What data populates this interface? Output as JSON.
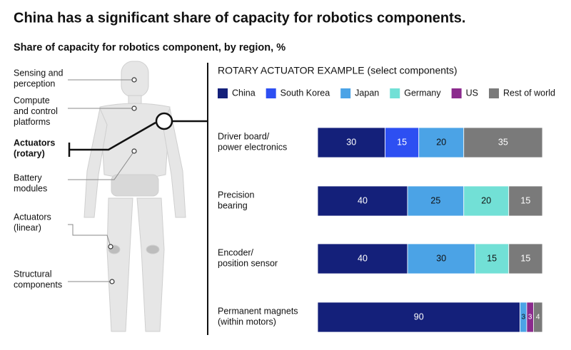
{
  "chart_data": {
    "type": "stacked-bar-horizontal",
    "title": "China has a significant share of capacity for robotics components.",
    "subtitle": "Share of capacity for robotics component, by region, %",
    "panel_title": "ROTARY ACTUATOR EXAMPLE (select components)",
    "annotations": [
      "Sensing and\nperception",
      "Compute\nand control\nplatforms",
      "Actuators\n(rotary)",
      "Battery\nmodules",
      "Actuators\n(linear)",
      "Structural\ncomponents"
    ],
    "highlight": "Actuators\n(rotary)",
    "categories": [
      "Driver board/\npower electronics",
      "Precision\nbearing",
      "Encoder/\nposition sensor",
      "Permanent magnets\n(within motors)"
    ],
    "xlim": [
      0,
      100
    ],
    "series": [
      {
        "name": "China",
        "color": "#14207a",
        "values": [
          30,
          40,
          40,
          90
        ]
      },
      {
        "name": "South Korea",
        "color": "#2d4ff2",
        "values": [
          15,
          null,
          null,
          null
        ]
      },
      {
        "name": "Japan",
        "color": "#4ba3e6",
        "values": [
          20,
          25,
          30,
          3
        ]
      },
      {
        "name": "Germany",
        "color": "#72e0d6",
        "values": [
          null,
          20,
          15,
          null
        ]
      },
      {
        "name": "US",
        "color": "#8b2a8d",
        "values": [
          null,
          null,
          null,
          3
        ]
      },
      {
        "name": "Rest of world",
        "color": "#7a7a7a",
        "values": [
          35,
          15,
          15,
          4
        ]
      }
    ]
  }
}
